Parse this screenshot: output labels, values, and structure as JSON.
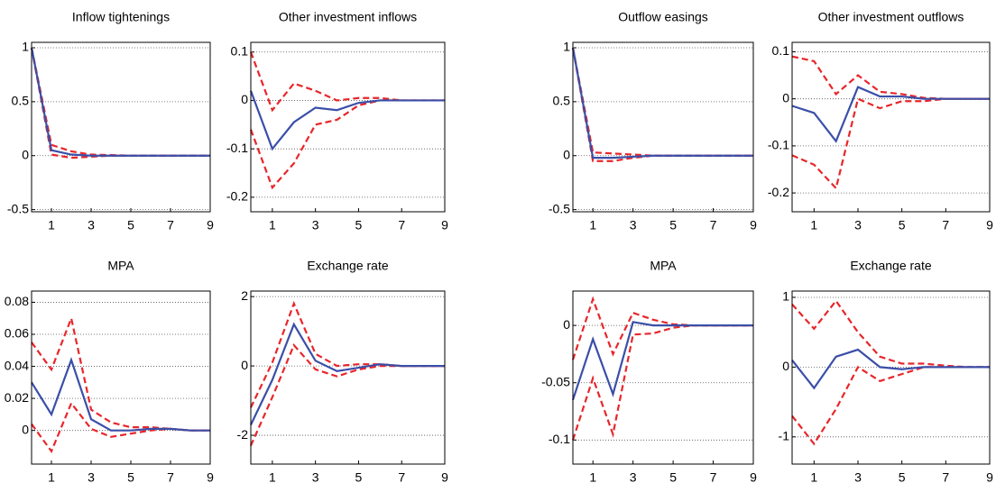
{
  "chart_data": [
    {
      "type": "line",
      "title": "Inflow tightenings",
      "x": [
        0,
        1,
        2,
        3,
        4,
        5,
        6,
        7,
        8,
        9
      ],
      "xlim": [
        0,
        9
      ],
      "xticks": [
        1,
        3,
        5,
        7,
        9
      ],
      "ylim": [
        -0.52,
        1.05
      ],
      "yticks": [
        -0.5,
        0,
        0.5,
        1
      ],
      "grid": true,
      "series": [
        {
          "color": "#e8262a",
          "style": "dashed",
          "values": [
            1,
            0.1,
            0.04,
            0.01,
            0.005,
            0,
            0,
            0,
            0,
            0
          ]
        },
        {
          "color": "#e8262a",
          "style": "dashed",
          "values": [
            1,
            0.01,
            -0.02,
            -0.01,
            0,
            0,
            0,
            0,
            0,
            0
          ]
        },
        {
          "color": "#3a4fa8",
          "style": "solid",
          "values": [
            1,
            0.05,
            0.01,
            0,
            0,
            0,
            0,
            0,
            0,
            0
          ]
        }
      ]
    },
    {
      "type": "line",
      "title": "Other investment inflows",
      "x": [
        0,
        1,
        2,
        3,
        4,
        5,
        6,
        7,
        8,
        9
      ],
      "xlim": [
        0,
        9
      ],
      "xticks": [
        1,
        3,
        5,
        7,
        9
      ],
      "ylim": [
        -0.23,
        0.12
      ],
      "yticks": [
        -0.2,
        -0.1,
        0,
        0.1
      ],
      "grid": true,
      "series": [
        {
          "color": "#e8262a",
          "style": "dashed",
          "values": [
            0.1,
            -0.02,
            0.035,
            0.02,
            0,
            0.005,
            0.005,
            0,
            0,
            0
          ]
        },
        {
          "color": "#e8262a",
          "style": "dashed",
          "values": [
            -0.06,
            -0.18,
            -0.13,
            -0.05,
            -0.04,
            -0.01,
            0,
            0,
            0,
            0
          ]
        },
        {
          "color": "#3a4fa8",
          "style": "solid",
          "values": [
            0.02,
            -0.1,
            -0.045,
            -0.015,
            -0.02,
            -0.005,
            0,
            0,
            0,
            0
          ]
        }
      ]
    },
    {
      "type": "line",
      "title": "Outflow easings",
      "x": [
        0,
        1,
        2,
        3,
        4,
        5,
        6,
        7,
        8,
        9
      ],
      "xlim": [
        0,
        9
      ],
      "xticks": [
        1,
        3,
        5,
        7,
        9
      ],
      "ylim": [
        -0.52,
        1.05
      ],
      "yticks": [
        -0.5,
        0,
        0.5,
        1
      ],
      "grid": true,
      "series": [
        {
          "color": "#e8262a",
          "style": "dashed",
          "values": [
            1,
            0.03,
            0.02,
            0.01,
            0,
            0,
            0,
            0,
            0,
            0
          ]
        },
        {
          "color": "#e8262a",
          "style": "dashed",
          "values": [
            1,
            -0.05,
            -0.05,
            -0.02,
            0,
            0,
            0,
            0,
            0,
            0
          ]
        },
        {
          "color": "#3a4fa8",
          "style": "solid",
          "values": [
            1,
            -0.02,
            -0.02,
            -0.01,
            0,
            0,
            0,
            0,
            0,
            0
          ]
        }
      ]
    },
    {
      "type": "line",
      "title": "Other investment outflows",
      "x": [
        0,
        1,
        2,
        3,
        4,
        5,
        6,
        7,
        8,
        9
      ],
      "xlim": [
        0,
        9
      ],
      "xticks": [
        1,
        3,
        5,
        7,
        9
      ],
      "ylim": [
        -0.24,
        0.12
      ],
      "yticks": [
        -0.2,
        -0.1,
        0,
        0.1
      ],
      "grid": true,
      "series": [
        {
          "color": "#e8262a",
          "style": "dashed",
          "values": [
            0.09,
            0.08,
            0.01,
            0.05,
            0.015,
            0.01,
            0.002,
            0,
            0,
            0
          ]
        },
        {
          "color": "#e8262a",
          "style": "dashed",
          "values": [
            -0.12,
            -0.14,
            -0.19,
            0,
            -0.02,
            -0.005,
            -0.005,
            0,
            0,
            0
          ]
        },
        {
          "color": "#3a4fa8",
          "style": "solid",
          "values": [
            -0.015,
            -0.03,
            -0.09,
            0.025,
            0.005,
            0.005,
            0,
            0,
            0,
            0
          ]
        }
      ]
    },
    {
      "type": "line",
      "title": "MPA",
      "x": [
        0,
        1,
        2,
        3,
        4,
        5,
        6,
        7,
        8,
        9
      ],
      "xlim": [
        0,
        9
      ],
      "xticks": [
        1,
        3,
        5,
        7,
        9
      ],
      "ylim": [
        -0.021,
        0.087
      ],
      "yticks": [
        0,
        0.02,
        0.04,
        0.06,
        0.08
      ],
      "grid": true,
      "series": [
        {
          "color": "#e8262a",
          "style": "dashed",
          "values": [
            0.055,
            0.038,
            0.07,
            0.013,
            0.005,
            0.002,
            0.002,
            0.001,
            0,
            0
          ]
        },
        {
          "color": "#e8262a",
          "style": "dashed",
          "values": [
            0.004,
            -0.013,
            0.017,
            0.001,
            -0.004,
            -0.002,
            0,
            0.001,
            0,
            0
          ]
        },
        {
          "color": "#3a4fa8",
          "style": "solid",
          "values": [
            0.03,
            0.01,
            0.044,
            0.007,
            0,
            0,
            0.001,
            0.001,
            0,
            0
          ]
        }
      ]
    },
    {
      "type": "line",
      "title": "Exchange rate",
      "x": [
        0,
        1,
        2,
        3,
        4,
        5,
        6,
        7,
        8,
        9
      ],
      "xlim": [
        0,
        9
      ],
      "xticks": [
        1,
        3,
        5,
        7,
        9
      ],
      "ylim": [
        -2.83,
        2.16
      ],
      "yticks": [
        -2,
        0,
        2
      ],
      "grid": true,
      "series": [
        {
          "color": "#e8262a",
          "style": "dashed",
          "values": [
            -1.2,
            0.1,
            1.8,
            0.35,
            0,
            0.05,
            0.05,
            0,
            0,
            0
          ]
        },
        {
          "color": "#e8262a",
          "style": "dashed",
          "values": [
            -2.3,
            -0.9,
            0.6,
            -0.1,
            -0.3,
            -0.1,
            0,
            0,
            0,
            0
          ]
        },
        {
          "color": "#3a4fa8",
          "style": "solid",
          "values": [
            -1.7,
            -0.4,
            1.2,
            0.15,
            -0.15,
            -0.05,
            0.05,
            0,
            0,
            0
          ]
        }
      ]
    },
    {
      "type": "line",
      "title": "MPA",
      "x": [
        0,
        1,
        2,
        3,
        4,
        5,
        6,
        7,
        8,
        9
      ],
      "xlim": [
        0,
        9
      ],
      "xticks": [
        1,
        3,
        5,
        7,
        9
      ],
      "ylim": [
        -0.121,
        0.03
      ],
      "yticks": [
        -0.1,
        -0.05,
        0
      ],
      "grid": true,
      "series": [
        {
          "color": "#e8262a",
          "style": "dashed",
          "values": [
            -0.03,
            0.023,
            -0.025,
            0.011,
            0.005,
            0.001,
            0,
            0,
            0,
            0
          ]
        },
        {
          "color": "#e8262a",
          "style": "dashed",
          "values": [
            -0.1,
            -0.046,
            -0.095,
            -0.008,
            -0.007,
            -0.002,
            0,
            0,
            0,
            0
          ]
        },
        {
          "color": "#3a4fa8",
          "style": "solid",
          "values": [
            -0.065,
            -0.012,
            -0.06,
            0.003,
            0,
            0,
            0,
            0,
            0,
            0
          ]
        }
      ]
    },
    {
      "type": "line",
      "title": "Exchange rate",
      "x": [
        0,
        1,
        2,
        3,
        4,
        5,
        6,
        7,
        8,
        9
      ],
      "xlim": [
        0,
        9
      ],
      "xticks": [
        1,
        3,
        5,
        7,
        9
      ],
      "ylim": [
        -1.39,
        1.09
      ],
      "yticks": [
        -1,
        0,
        1
      ],
      "grid": true,
      "series": [
        {
          "color": "#e8262a",
          "style": "dashed",
          "values": [
            0.9,
            0.55,
            0.95,
            0.5,
            0.15,
            0.05,
            0.05,
            0.02,
            0,
            0
          ]
        },
        {
          "color": "#e8262a",
          "style": "dashed",
          "values": [
            -0.7,
            -1.1,
            -0.6,
            0,
            -0.2,
            -0.1,
            0,
            0,
            0,
            0
          ]
        },
        {
          "color": "#3a4fa8",
          "style": "solid",
          "values": [
            0.1,
            -0.3,
            0.15,
            0.25,
            0,
            -0.03,
            0,
            0,
            0,
            0
          ]
        }
      ]
    }
  ]
}
